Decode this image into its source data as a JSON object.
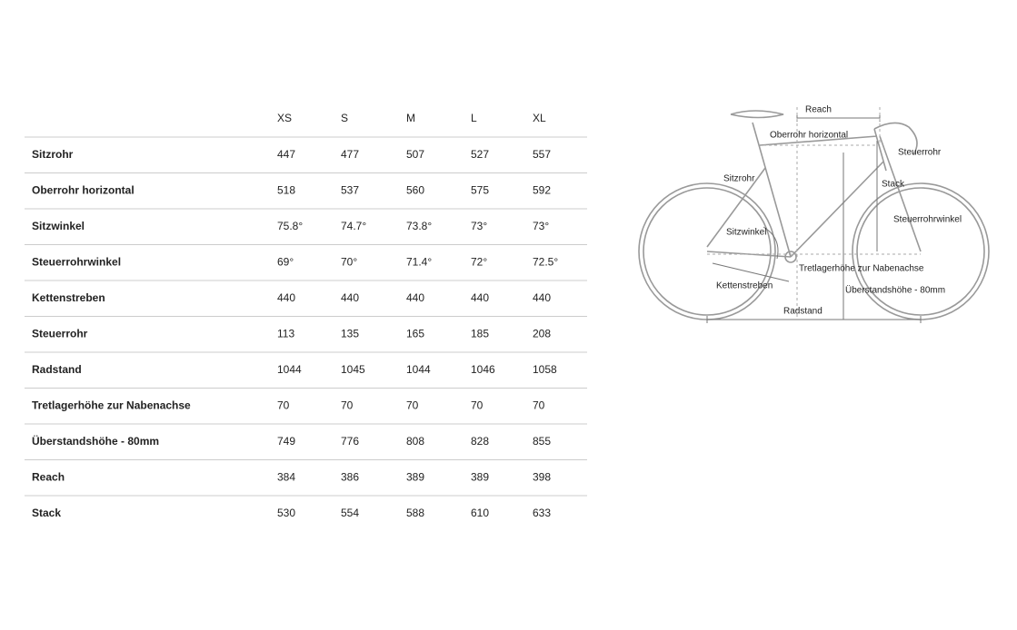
{
  "table": {
    "header": [
      "XS",
      "S",
      "M",
      "L",
      "XL"
    ],
    "rows": [
      {
        "label": "Sitzrohr",
        "values": [
          "447",
          "477",
          "507",
          "527",
          "557"
        ]
      },
      {
        "label": "Oberrohr horizontal",
        "values": [
          "518",
          "537",
          "560",
          "575",
          "592"
        ]
      },
      {
        "label": "Sitzwinkel",
        "values": [
          "75.8°",
          "74.7°",
          "73.8°",
          "73°",
          "73°"
        ]
      },
      {
        "label": "Steuerrohrwinkel",
        "values": [
          "69°",
          "70°",
          "71.4°",
          "72°",
          "72.5°"
        ]
      },
      {
        "label": "Kettenstreben",
        "values": [
          "440",
          "440",
          "440",
          "440",
          "440"
        ]
      },
      {
        "label": "Steuerrohr",
        "values": [
          "113",
          "135",
          "165",
          "185",
          "208"
        ]
      },
      {
        "label": "Radstand",
        "values": [
          "1044",
          "1045",
          "1044",
          "1046",
          "1058"
        ]
      },
      {
        "label": "Tretlagerhöhe zur Nabenachse",
        "values": [
          "70",
          "70",
          "70",
          "70",
          "70"
        ]
      },
      {
        "label": "Überstandshöhe - 80mm",
        "values": [
          "749",
          "776",
          "808",
          "828",
          "855"
        ]
      },
      {
        "label": "Reach",
        "values": [
          "384",
          "386",
          "389",
          "389",
          "398"
        ]
      },
      {
        "label": "Stack",
        "values": [
          "530",
          "554",
          "588",
          "610",
          "633"
        ]
      }
    ]
  },
  "diagram": {
    "labels": [
      "Reach",
      "Oberrohr horizontal",
      "Steuerrohr",
      "Sitzrohr",
      "Stack",
      "Steuerrohrwinkel",
      "Sitzwinkel",
      "Tretlagerhöhe zur Nabenachse",
      "Kettenstreben",
      "Überstandshöhe - 80mm",
      "Radstand"
    ]
  }
}
